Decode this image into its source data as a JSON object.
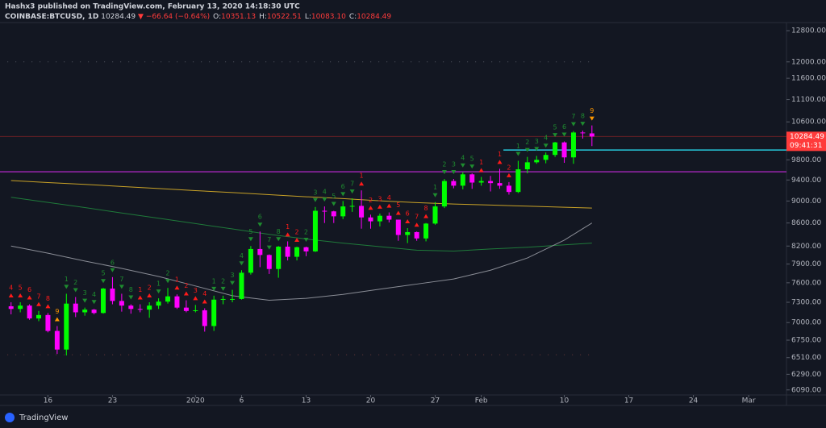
{
  "header": {
    "publisher": "Hashx3 published on TradingView.com, February 13, 2020 14:18:30 UTC",
    "symbol": "COINBASE:BTCUSD, 1D",
    "last": "10284.49",
    "change": "−66.64 (−0.64%)",
    "ohlc_labels": [
      "O:",
      "H:",
      "L:",
      "C:"
    ],
    "ohlc_values": [
      "10351.13",
      "10522.51",
      "10083.10",
      "10284.49"
    ]
  },
  "footer": {
    "brand": "TradingView"
  },
  "chart_data": {
    "type": "candlestick",
    "log": true,
    "ylim": [
      6027,
      12973
    ],
    "xlim": [
      -1.2,
      84.1
    ],
    "yticks": [
      {
        "value": 12800,
        "label": "12800.00"
      },
      {
        "value": 12000,
        "label": "12000.00"
      },
      {
        "value": 11600,
        "label": "11600.00"
      },
      {
        "value": 11100,
        "label": "11100.00"
      },
      {
        "value": 10600,
        "label": "10600.00"
      },
      {
        "value": 9800,
        "label": "9800.00"
      },
      {
        "value": 9400,
        "label": "9400.00"
      },
      {
        "value": 9000,
        "label": "9000.00"
      },
      {
        "value": 8600,
        "label": "8600.00"
      },
      {
        "value": 8200,
        "label": "8200.00"
      },
      {
        "value": 7900,
        "label": "7900.00"
      },
      {
        "value": 7600,
        "label": "7600.00"
      },
      {
        "value": 7300,
        "label": "7300.00"
      },
      {
        "value": 7000,
        "label": "7000.00"
      },
      {
        "value": 6750,
        "label": "6750.00"
      },
      {
        "value": 6510,
        "label": "6510.00"
      },
      {
        "value": 6290,
        "label": "6290.00"
      },
      {
        "value": 6090,
        "label": "6090.00"
      }
    ],
    "xticks": [
      {
        "value": 4,
        "label": "16"
      },
      {
        "value": 11,
        "label": "23"
      },
      {
        "value": 20,
        "label": "2020"
      },
      {
        "value": 25,
        "label": "6"
      },
      {
        "value": 32,
        "label": "13"
      },
      {
        "value": 39,
        "label": "20"
      },
      {
        "value": 46,
        "label": "27"
      },
      {
        "value": 51,
        "label": "Feb"
      },
      {
        "value": 60,
        "label": "10"
      },
      {
        "value": 67,
        "label": "17"
      },
      {
        "value": 74,
        "label": "24"
      },
      {
        "value": 80,
        "label": "Mar"
      }
    ],
    "up_color": "#00ff00",
    "down_color": "#ff00ff",
    "candles": {
      "ohlc": [
        [
          7240,
          7300,
          7120,
          7200
        ],
        [
          7200,
          7300,
          7150,
          7250
        ],
        [
          7250,
          7270,
          7040,
          7060
        ],
        [
          7060,
          7170,
          7020,
          7110
        ],
        [
          7110,
          7140,
          6860,
          6880
        ],
        [
          6880,
          6950,
          6560,
          6620
        ],
        [
          6620,
          7430,
          6540,
          7280
        ],
        [
          7280,
          7380,
          7080,
          7150
        ],
        [
          7150,
          7220,
          7100,
          7190
        ],
        [
          7190,
          7200,
          7120,
          7140
        ],
        [
          7140,
          7520,
          7130,
          7510
        ],
        [
          7510,
          7690,
          7270,
          7320
        ],
        [
          7320,
          7430,
          7160,
          7250
        ],
        [
          7250,
          7270,
          7130,
          7200
        ],
        [
          7200,
          7270,
          7150,
          7190
        ],
        [
          7190,
          7300,
          7070,
          7250
        ],
        [
          7250,
          7360,
          7200,
          7310
        ],
        [
          7310,
          7520,
          7280,
          7390
        ],
        [
          7390,
          7420,
          7200,
          7220
        ],
        [
          7220,
          7330,
          7150,
          7170
        ],
        [
          7170,
          7260,
          7150,
          7180
        ],
        [
          7180,
          7210,
          6870,
          6950
        ],
        [
          6950,
          7400,
          6880,
          7340
        ],
        [
          7340,
          7400,
          7270,
          7350
        ],
        [
          7350,
          7490,
          7300,
          7350
        ],
        [
          7350,
          7800,
          7340,
          7760
        ],
        [
          7760,
          8200,
          7730,
          8150
        ],
        [
          8150,
          8450,
          7850,
          8050
        ],
        [
          8050,
          8060,
          7740,
          7820
        ],
        [
          7820,
          8200,
          7680,
          8190
        ],
        [
          8190,
          8280,
          7960,
          8020
        ],
        [
          8020,
          8190,
          7960,
          8180
        ],
        [
          8180,
          8190,
          8030,
          8110
        ],
        [
          8110,
          8890,
          8100,
          8820
        ],
        [
          8820,
          8900,
          8600,
          8810
        ],
        [
          8810,
          8820,
          8600,
          8720
        ],
        [
          8720,
          9000,
          8670,
          8900
        ],
        [
          8900,
          9050,
          8800,
          8910
        ],
        [
          8910,
          9200,
          8500,
          8700
        ],
        [
          8700,
          8750,
          8500,
          8630
        ],
        [
          8630,
          8770,
          8540,
          8730
        ],
        [
          8730,
          8790,
          8610,
          8660
        ],
        [
          8660,
          8660,
          8290,
          8390
        ],
        [
          8390,
          8510,
          8250,
          8440
        ],
        [
          8440,
          8450,
          8290,
          8330
        ],
        [
          8330,
          8600,
          8280,
          8590
        ],
        [
          8590,
          8980,
          8570,
          8900
        ],
        [
          8900,
          9420,
          8870,
          9380
        ],
        [
          9380,
          9420,
          9240,
          9290
        ],
        [
          9290,
          9550,
          9220,
          9510
        ],
        [
          9510,
          9530,
          9230,
          9350
        ],
        [
          9350,
          9460,
          9290,
          9380
        ],
        [
          9380,
          9480,
          9180,
          9340
        ],
        [
          9340,
          9620,
          9230,
          9290
        ],
        [
          9290,
          9360,
          9120,
          9170
        ],
        [
          9170,
          9780,
          9150,
          9610
        ],
        [
          9610,
          9860,
          9530,
          9750
        ],
        [
          9750,
          9880,
          9720,
          9800
        ],
        [
          9800,
          9950,
          9730,
          9900
        ],
        [
          9900,
          10170,
          9860,
          10160
        ],
        [
          10160,
          10180,
          9740,
          9850
        ],
        [
          9850,
          10400,
          9720,
          10370
        ],
        [
          10370,
          10410,
          10240,
          10360
        ],
        [
          10351.13,
          10522.51,
          10083.1,
          10284.49
        ]
      ]
    },
    "setup_counts": [
      4,
      5,
      6,
      7,
      8,
      9,
      1,
      2,
      3,
      4,
      5,
      6,
      7,
      8,
      1,
      2,
      1,
      2,
      1,
      2,
      3,
      4,
      1,
      2,
      3,
      4,
      5,
      6,
      7,
      8,
      1,
      2,
      2,
      3,
      4,
      5,
      6,
      7,
      1,
      2,
      3,
      4,
      5,
      6,
      7,
      8,
      1,
      2,
      3,
      4,
      5,
      1,
      null,
      1,
      2,
      1,
      2,
      3,
      4,
      5,
      6,
      7,
      8,
      9
    ],
    "setup_colors": [
      "#ff1a1a",
      "#ff1a1a",
      "#ff1a1a",
      "#ff1a1a",
      "#ff1a1a",
      "#ff9800",
      "#1e8c2f",
      "#1e8c2f",
      "#1e8c2f",
      "#1e8c2f",
      "#1e8c2f",
      "#1e8c2f",
      "#1e8c2f",
      "#1e8c2f",
      "#ff1a1a",
      "#ff1a1a",
      "#1e8c2f",
      "#1e8c2f",
      "#ff1a1a",
      "#ff1a1a",
      "#ff1a1a",
      "#ff1a1a",
      "#1e8c2f",
      "#1e8c2f",
      "#1e8c2f",
      "#1e8c2f",
      "#1e8c2f",
      "#1e8c2f",
      "#1e8c2f",
      "#1e8c2f",
      "#ff1a1a",
      "#ff1a1a",
      "#1e8c2f",
      "#1e8c2f",
      "#1e8c2f",
      "#1e8c2f",
      "#1e8c2f",
      "#1e8c2f",
      "#ff1a1a",
      "#ff1a1a",
      "#ff1a1a",
      "#ff1a1a",
      "#ff1a1a",
      "#ff1a1a",
      "#ff1a1a",
      "#ff1a1a",
      "#1e8c2f",
      "#1e8c2f",
      "#1e8c2f",
      "#1e8c2f",
      "#1e8c2f",
      "#ff1a1a",
      "#ff1a1a",
      "#ff1a1a",
      "#ff1a1a",
      "#1e8c2f",
      "#1e8c2f",
      "#1e8c2f",
      "#1e8c2f",
      "#1e8c2f",
      "#1e8c2f",
      "#1e8c2f",
      "#1e8c2f",
      "#ff9800"
    ],
    "series": [
      {
        "color": "#c9a227",
        "x": [
          0,
          4,
          8,
          12,
          16,
          20,
          24,
          28,
          32,
          36,
          40,
          44,
          48,
          52,
          56,
          60,
          63
        ],
        "values": [
          9390,
          9350,
          9315,
          9275,
          9235,
          9195,
          9160,
          9120,
          9080,
          9045,
          9005,
          8970,
          8945,
          8925,
          8905,
          8885,
          8870
        ]
      },
      {
        "color": "#1f7a3a",
        "x": [
          0,
          4,
          8,
          12,
          16,
          20,
          24,
          28,
          32,
          36,
          40,
          44,
          48,
          52,
          56,
          60,
          63
        ],
        "values": [
          9070,
          8975,
          8880,
          8780,
          8685,
          8590,
          8495,
          8400,
          8320,
          8250,
          8190,
          8130,
          8115,
          8150,
          8180,
          8220,
          8250
        ]
      },
      {
        "color": "#8a8d96",
        "x": [
          0,
          4,
          8,
          12,
          16,
          20,
          24,
          28,
          32,
          36,
          40,
          44,
          48,
          52,
          56,
          60,
          63
        ],
        "values": [
          8200,
          8080,
          7950,
          7830,
          7700,
          7550,
          7400,
          7330,
          7360,
          7420,
          7500,
          7580,
          7660,
          7800,
          8000,
          8300,
          8600
        ]
      }
    ],
    "levels": [
      {
        "value": 9560,
        "color": "#9c27b0",
        "from": -1.2,
        "to": 84.1,
        "dash": false
      },
      {
        "value": 10000,
        "color": "#26c6da",
        "from": 53.4,
        "to": 84.1,
        "dash": false
      },
      {
        "value": 12000,
        "color": "#555a66",
        "from": -0.4,
        "to": 63,
        "dash": true
      },
      {
        "value": 6550,
        "color": "#6b3a3a",
        "from": -0.4,
        "to": 63,
        "dash": true
      }
    ],
    "price_tag": "10284.49",
    "countdown": "09:41:31",
    "price_color": "#ff3b3b"
  }
}
